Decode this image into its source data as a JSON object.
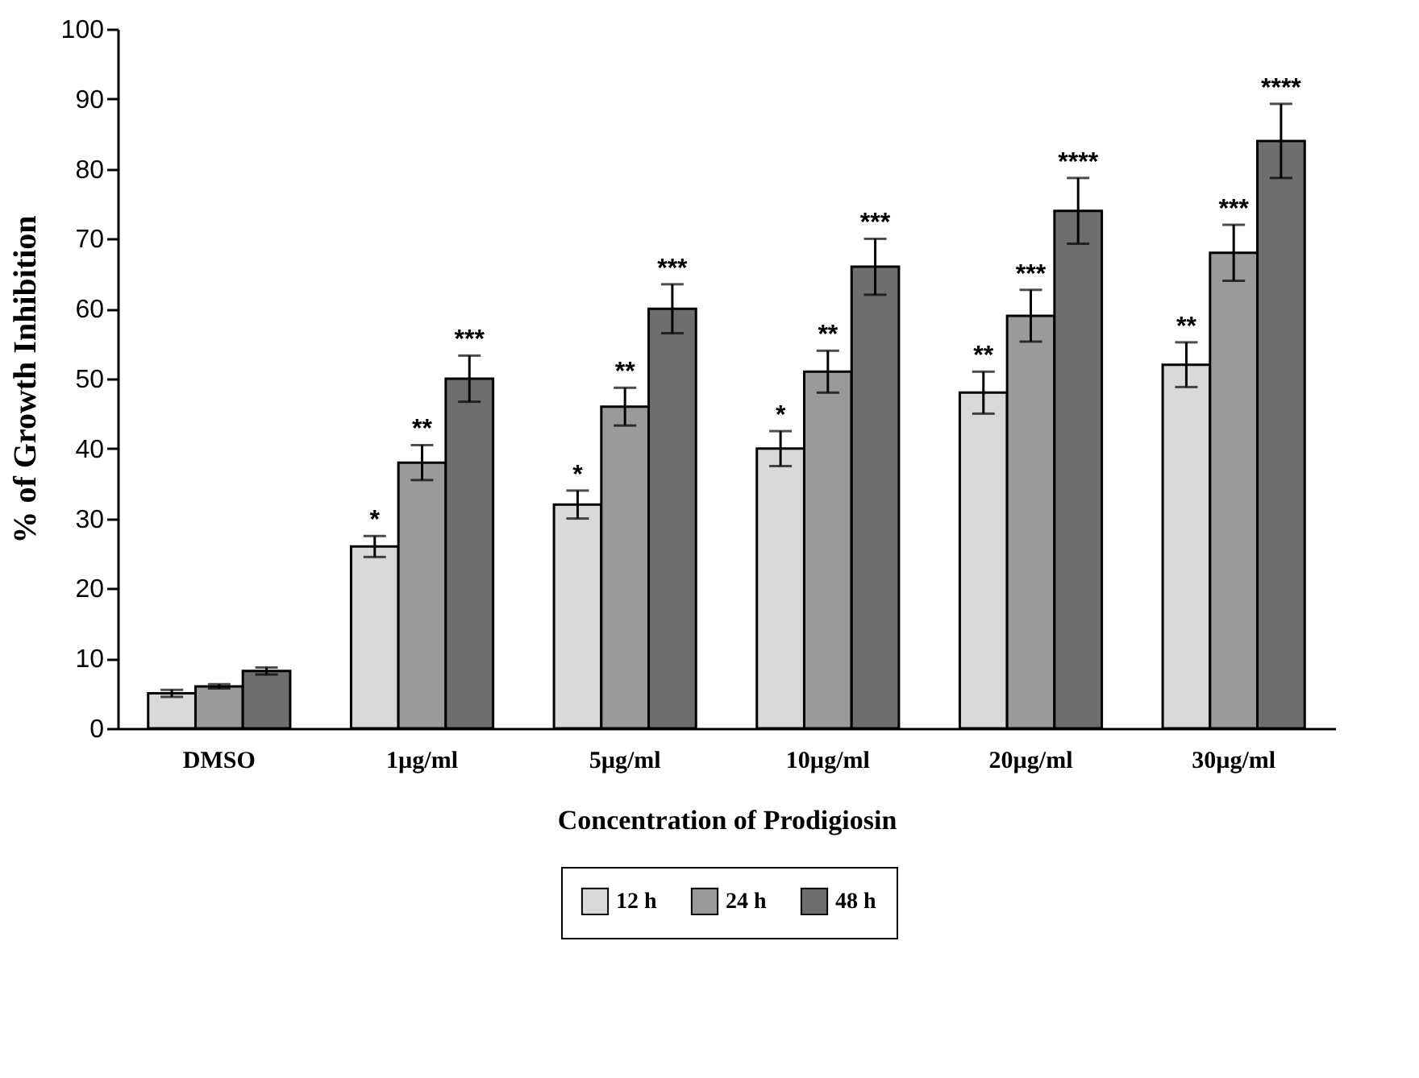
{
  "chart_data": {
    "type": "bar",
    "xlabel": "Concentration of Prodigiosin",
    "ylabel": "% of Growth Inhibition",
    "categories": [
      "DMSO",
      "1µg/ml",
      "5µg/ml",
      "10µg/ml",
      "20µg/ml",
      "30µg/ml"
    ],
    "series": [
      {
        "name": "12 h",
        "color": "#d9d9d9",
        "values": [
          5,
          26,
          32,
          40,
          48,
          52
        ],
        "errors": [
          0.5,
          1.5,
          2,
          2.5,
          3,
          3.2
        ]
      },
      {
        "name": "24 h",
        "color": "#9a9a9a",
        "values": [
          6,
          38,
          46,
          51,
          59,
          68
        ],
        "errors": [
          0.3,
          2.5,
          2.7,
          3,
          3.7,
          4
        ]
      },
      {
        "name": "48 h",
        "color": "#6e6e6e",
        "values": [
          8.2,
          50,
          60,
          66,
          74,
          84
        ],
        "errors": [
          0.5,
          3.3,
          3.5,
          4,
          4.7,
          5.3
        ]
      }
    ],
    "ylim": [
      0,
      100
    ],
    "yticks": [
      0,
      10,
      20,
      30,
      40,
      50,
      60,
      70,
      80,
      90,
      100
    ],
    "grid": false,
    "legend": "bottom",
    "annotations": [
      "*",
      "**",
      "***",
      "*",
      "**",
      "***",
      "*",
      "**",
      "***",
      "**",
      "***",
      "****",
      "**",
      "***",
      "****"
    ]
  }
}
